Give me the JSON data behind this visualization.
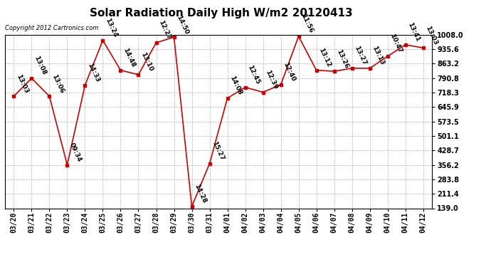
{
  "title": "Solar Radiation Daily High W/m2 20120413",
  "copyright": "Copyright 2012 Cartronics.com",
  "ylim": [
    139.0,
    1008.0
  ],
  "yticks": [
    139.0,
    211.4,
    283.8,
    356.2,
    428.7,
    501.1,
    573.5,
    645.9,
    718.3,
    790.8,
    863.2,
    935.6,
    1008.0
  ],
  "dates": [
    "03/20",
    "03/21",
    "03/22",
    "03/23",
    "03/24",
    "03/25",
    "03/26",
    "03/27",
    "03/28",
    "03/29",
    "03/30",
    "03/31",
    "04/01",
    "04/02",
    "04/03",
    "04/04",
    "04/05",
    "04/06",
    "04/07",
    "04/08",
    "04/09",
    "04/10",
    "04/11",
    "04/12"
  ],
  "values": [
    700,
    790,
    700,
    356,
    755,
    980,
    830,
    808,
    968,
    996,
    148,
    363,
    690,
    745,
    720,
    758,
    1000,
    830,
    825,
    840,
    840,
    900,
    958,
    942
  ],
  "labels": [
    "13:03",
    "13:08",
    "13:06",
    "09:34",
    "14:33",
    "13:24",
    "14:48",
    "13:10",
    "12:27",
    "14:50",
    "14:28",
    "15:27",
    "14:08",
    "12:45",
    "12:39",
    "12:40",
    "11:56",
    "13:12",
    "13:26",
    "13:27",
    "13:13",
    "10:47",
    "13:41",
    "13:03"
  ],
  "line_color": "#cc0000",
  "marker_color": "#cc0000",
  "bg_color": "#ffffff",
  "grid_color": "#aaaaaa",
  "title_fontsize": 11,
  "label_fontsize": 6.5,
  "tick_fontsize": 7,
  "copyright_fontsize": 6
}
